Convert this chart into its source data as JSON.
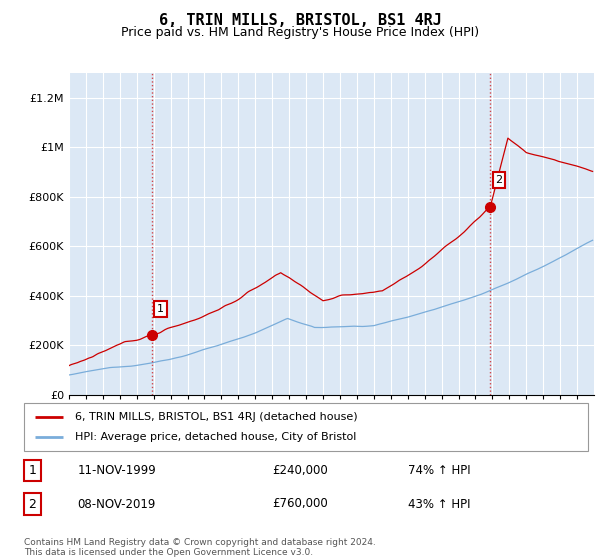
{
  "title": "6, TRIN MILLS, BRISTOL, BS1 4RJ",
  "subtitle": "Price paid vs. HM Land Registry's House Price Index (HPI)",
  "title_fontsize": 11,
  "subtitle_fontsize": 9,
  "background_color": "#ffffff",
  "plot_bg_color": "#dce8f5",
  "grid_color": "#ffffff",
  "red_color": "#cc0000",
  "blue_color": "#7aadda",
  "sale1_year": 1999.88,
  "sale1_value": 240000,
  "sale2_year": 2019.88,
  "sale2_value": 760000,
  "sale1_label": "11-NOV-1999",
  "sale1_price": "£240,000",
  "sale1_hpi": "74% ↑ HPI",
  "sale2_label": "08-NOV-2019",
  "sale2_price": "£760,000",
  "sale2_hpi": "43% ↑ HPI",
  "legend1": "6, TRIN MILLS, BRISTOL, BS1 4RJ (detached house)",
  "legend2": "HPI: Average price, detached house, City of Bristol",
  "footer": "Contains HM Land Registry data © Crown copyright and database right 2024.\nThis data is licensed under the Open Government Licence v3.0.",
  "ylim": [
    0,
    1300000
  ],
  "yticks": [
    0,
    200000,
    400000,
    600000,
    800000,
    1000000,
    1200000
  ],
  "ytick_labels": [
    "£0",
    "£200K",
    "£400K",
    "£600K",
    "£800K",
    "£1M",
    "£1.2M"
  ],
  "xmin": 1995,
  "xmax": 2026
}
